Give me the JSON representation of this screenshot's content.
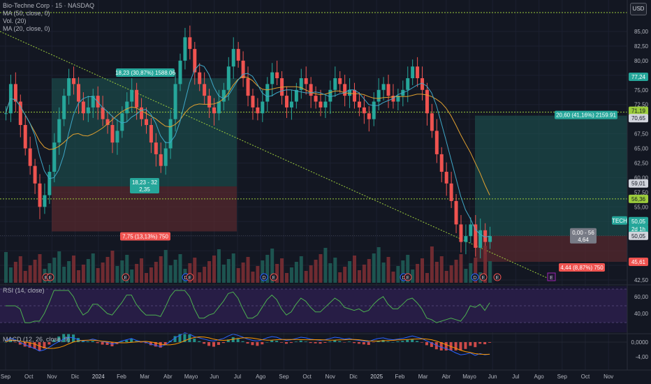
{
  "legend": {
    "title": "Bio-Techne Corp · 15 · NASDAQ",
    "ma50": "MA (50, close, 0)",
    "vol": "Vol. (20)",
    "ma20": "MA (20, close, 0)"
  },
  "currency_button": "USD",
  "price_axis": [
    "85,00",
    "82,50",
    "80,00",
    "75,00",
    "72,50",
    "67,50",
    "65,00",
    "62,50",
    "60,00",
    "57,50",
    "55,00",
    "42,50"
  ],
  "price_badges": {
    "b7724": "77,24",
    "b7219": "71,19",
    "b7065": "70,65",
    "b5901": "59,01",
    "b5636": "56,36",
    "b5126": "51,26",
    "ticker": "TECH",
    "b5005": "50,05",
    "time_left": "2d 1h",
    "b5005b": "50,05",
    "b4561": "45,61"
  },
  "rsi": {
    "label": "RSI (14, close)",
    "axis": [
      "60,00",
      "40,00"
    ]
  },
  "macd": {
    "label": "MACD (12, 26, close, 9)",
    "axis": [
      "0,0000",
      "-4,00"
    ]
  },
  "time_axis": [
    "Sep",
    "Oct",
    "Nov",
    "Dic",
    "2024",
    "Feb",
    "Mar",
    "Abr",
    "Mayo",
    "Jun",
    "Jul",
    "Ago",
    "Sep",
    "Oct",
    "Nov",
    "Dic",
    "2025",
    "Feb",
    "Mar",
    "Abr",
    "Mayo",
    "Jun",
    "Jul",
    "Ago",
    "Sep",
    "Oct",
    "Nov"
  ],
  "annotations": {
    "long1_top": "18,23 (30,87%) 1588.06",
    "long1_mid1": "18,23 - 32",
    "long1_mid2": "2,35",
    "long1_bottom": "7,75 (13,13%) 750",
    "long2_top": "20,60 (41,16%) 2159.91",
    "long2_mid1": "0,00 - 56",
    "long2_mid2": "4,64",
    "long2_bottom": "4,44 (8,87%) 750"
  },
  "event_markers": [
    "E",
    "E",
    "E",
    "D",
    "E",
    "D",
    "E",
    "D",
    "E",
    "D",
    "E",
    "E",
    "D"
  ],
  "future_marker": "E",
  "colors": {
    "up": "#26a69a",
    "down": "#ef5350",
    "ma50": "#e0a030",
    "ma20": "#3fa8c8",
    "rsi": "#4caf50",
    "level": "#9ccc3c"
  }
}
